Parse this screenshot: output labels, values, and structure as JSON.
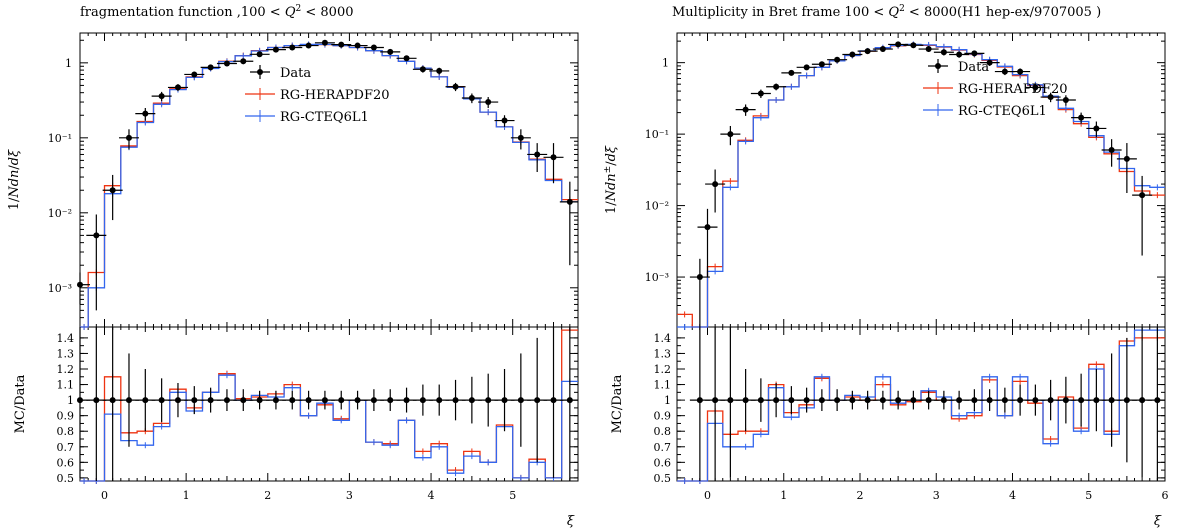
{
  "colors": {
    "data": "#000000",
    "herapdf": "#ee3311",
    "cteq": "#3366ee"
  },
  "chart_data": [
    {
      "type": "line",
      "title": "fragmentation function ,100 < Q² < 8000",
      "title_parts": {
        "pre": "fragmentation function ,100 < ",
        "q": "Q",
        "sup": "2",
        "post": " < 8000"
      },
      "ylabel": "1/Ndn/dξ",
      "ylabel_parts": {
        "a": "1/",
        "b": "Ndn",
        "c": "/",
        "d": "dξ"
      },
      "xlabel": "ξ",
      "ratio_ylabel": "MC/Data",
      "yscale": "log",
      "ylim": [
        0.0003,
        2.5
      ],
      "xlim": [
        -0.3,
        5.8
      ],
      "ratio_ylim": [
        0.48,
        1.47
      ],
      "legend_position": "top-center",
      "xticks": [
        "0",
        "1",
        "2",
        "3",
        "4",
        "5"
      ],
      "yticks": [
        "10⁻³",
        "10⁻²",
        "10⁻¹",
        "1"
      ],
      "ratio_yticks": [
        "0.5",
        "0.6",
        "0.7",
        "0.8",
        "0.9",
        "1",
        "1.1",
        "1.2",
        "1.3",
        "1.4"
      ],
      "series": [
        {
          "name": "Data",
          "kind": "points",
          "x": [
            -0.3,
            -0.1,
            0.1,
            0.3,
            0.5,
            0.7,
            0.9,
            1.1,
            1.3,
            1.5,
            1.7,
            1.9,
            2.1,
            2.3,
            2.5,
            2.7,
            2.9,
            3.1,
            3.3,
            3.5,
            3.7,
            3.9,
            4.1,
            4.3,
            4.5,
            4.7,
            4.9,
            5.1,
            5.3,
            5.5,
            5.7
          ],
          "y": [
            0.0011,
            0.005,
            0.02,
            0.1,
            0.21,
            0.36,
            0.47,
            0.7,
            0.87,
            0.98,
            1.05,
            1.3,
            1.5,
            1.6,
            1.7,
            1.85,
            1.75,
            1.7,
            1.6,
            1.4,
            1.15,
            0.82,
            0.78,
            0.48,
            0.34,
            0.3,
            0.17,
            0.1,
            0.06,
            0.055,
            0.014
          ],
          "yerr": [
            0.0005,
            0.0045,
            0.012,
            0.03,
            0.04,
            0.05,
            0.05,
            0.06,
            0.07,
            0.08,
            0.09,
            0.1,
            0.12,
            0.13,
            0.14,
            0.15,
            0.14,
            0.14,
            0.13,
            0.12,
            0.1,
            0.08,
            0.08,
            0.06,
            0.05,
            0.05,
            0.03,
            0.03,
            0.025,
            0.03,
            0.012
          ]
        },
        {
          "name": "RG-HERAPDF20",
          "kind": "step",
          "edges": [
            -0.4,
            -0.2,
            0.0,
            0.2,
            0.4,
            0.6,
            0.8,
            1.0,
            1.2,
            1.4,
            1.6,
            1.8,
            2.0,
            2.2,
            2.4,
            2.6,
            2.8,
            3.0,
            3.2,
            3.4,
            3.6,
            3.8,
            4.0,
            4.2,
            4.4,
            4.6,
            4.8,
            5.0,
            5.2,
            5.4,
            5.6,
            5.8
          ],
          "values": [
            0.0003,
            0.0016,
            0.023,
            0.078,
            0.165,
            0.29,
            0.45,
            0.65,
            0.85,
            1.05,
            1.25,
            1.45,
            1.6,
            1.7,
            1.75,
            1.75,
            1.7,
            1.6,
            1.45,
            1.25,
            1.05,
            0.85,
            0.65,
            0.48,
            0.33,
            0.22,
            0.14,
            0.088,
            0.052,
            0.028,
            0.015
          ]
        },
        {
          "name": "RG-CTEQ6L1",
          "kind": "step",
          "edges": [
            -0.4,
            -0.2,
            0.0,
            0.2,
            0.4,
            0.6,
            0.8,
            1.0,
            1.2,
            1.4,
            1.6,
            1.8,
            2.0,
            2.2,
            2.4,
            2.6,
            2.8,
            3.0,
            3.2,
            3.4,
            3.6,
            3.8,
            4.0,
            4.2,
            4.4,
            4.6,
            4.8,
            5.0,
            5.2,
            5.4,
            5.6,
            5.8
          ],
          "values": [
            0.0003,
            0.001,
            0.018,
            0.075,
            0.16,
            0.28,
            0.44,
            0.64,
            0.84,
            1.04,
            1.24,
            1.44,
            1.6,
            1.7,
            1.76,
            1.76,
            1.7,
            1.6,
            1.45,
            1.25,
            1.05,
            0.85,
            0.65,
            0.47,
            0.33,
            0.22,
            0.14,
            0.087,
            0.051,
            0.027,
            0.014
          ]
        }
      ],
      "ratio_series": [
        {
          "name": "Data",
          "kind": "points",
          "x": [
            -0.3,
            -0.1,
            0.1,
            0.3,
            0.5,
            0.7,
            0.9,
            1.1,
            1.3,
            1.5,
            1.7,
            1.9,
            2.1,
            2.3,
            2.5,
            2.7,
            2.9,
            3.1,
            3.3,
            3.5,
            3.7,
            3.9,
            4.1,
            4.3,
            4.5,
            4.7,
            4.9,
            5.1,
            5.3,
            5.5,
            5.7
          ],
          "y": [
            1,
            1,
            1,
            1,
            1,
            1,
            1,
            1,
            1,
            1,
            1,
            1,
            1,
            1,
            1,
            1,
            1,
            1,
            1,
            1,
            1,
            1,
            1,
            1,
            1,
            1,
            1,
            1,
            1,
            1,
            1
          ],
          "yerr": [
            0.5,
            0.8,
            0.6,
            0.3,
            0.2,
            0.14,
            0.11,
            0.09,
            0.08,
            0.07,
            0.07,
            0.06,
            0.06,
            0.06,
            0.06,
            0.06,
            0.06,
            0.06,
            0.07,
            0.07,
            0.08,
            0.1,
            0.1,
            0.13,
            0.15,
            0.17,
            0.2,
            0.3,
            0.4,
            0.5,
            0.8
          ]
        },
        {
          "name": "RG-HERAPDF20",
          "kind": "step",
          "edges": [
            -0.4,
            -0.2,
            0.0,
            0.2,
            0.4,
            0.6,
            0.8,
            1.0,
            1.2,
            1.4,
            1.6,
            1.8,
            2.0,
            2.2,
            2.4,
            2.6,
            2.8,
            3.0,
            3.2,
            3.4,
            3.6,
            3.8,
            4.0,
            4.2,
            4.4,
            4.6,
            4.8,
            5.0,
            5.2,
            5.4,
            5.6,
            5.8
          ],
          "values": [
            0.3,
            0.3,
            1.15,
            0.79,
            0.8,
            0.85,
            1.07,
            0.95,
            1.05,
            1.17,
            1.01,
            1.02,
            1.04,
            1.1,
            0.9,
            0.97,
            0.88,
            1.0,
            0.73,
            0.72,
            0.87,
            0.67,
            0.72,
            0.55,
            0.67,
            0.6,
            0.84,
            0.5,
            0.62,
            0.5,
            1.45
          ]
        },
        {
          "name": "RG-CTEQ6L1",
          "kind": "step",
          "edges": [
            -0.4,
            -0.2,
            0.0,
            0.2,
            0.4,
            0.6,
            0.8,
            1.0,
            1.2,
            1.4,
            1.6,
            1.8,
            2.0,
            2.2,
            2.4,
            2.6,
            2.8,
            3.0,
            3.2,
            3.4,
            3.6,
            3.8,
            4.0,
            4.2,
            4.4,
            4.6,
            4.8,
            5.0,
            5.2,
            5.4,
            5.6,
            5.8
          ],
          "values": [
            0.3,
            0.3,
            0.91,
            0.74,
            0.71,
            0.83,
            1.05,
            0.93,
            1.05,
            1.16,
            1.0,
            1.03,
            1.02,
            1.08,
            0.9,
            0.98,
            0.87,
            1.0,
            0.73,
            0.71,
            0.87,
            0.63,
            0.7,
            0.53,
            0.64,
            0.6,
            0.83,
            0.5,
            0.6,
            0.5,
            1.12
          ]
        }
      ]
    },
    {
      "type": "line",
      "title": "Multiplicity in Bret frame 100 < Q² < 8000(H1 hep-ex/9707005 )",
      "title_parts": {
        "pre": "Multiplicity in Bret frame 100 < ",
        "q": "Q",
        "sup": "2",
        "post": " < 8000(H1 hep-ex/9707005 )"
      },
      "ylabel": "1/Ndn±/dξ",
      "ylabel_parts": {
        "a": "1/",
        "b": "Ndn",
        "sup": "±",
        "c": "/",
        "d": "dξ"
      },
      "xlabel": "ξ",
      "ratio_ylabel": "MC/Data",
      "yscale": "log",
      "ylim": [
        0.0002,
        2.6
      ],
      "xlim": [
        -0.4,
        6.0
      ],
      "ratio_ylim": [
        0.48,
        1.47
      ],
      "legend_position": "top-right",
      "xticks": [
        "0",
        "1",
        "2",
        "3",
        "4",
        "5",
        "6"
      ],
      "yticks": [
        "10⁻³",
        "10⁻²",
        "10⁻¹",
        "1"
      ],
      "ratio_yticks": [
        "0.5",
        "0.6",
        "0.7",
        "0.8",
        "0.9",
        "1",
        "1.1",
        "1.2",
        "1.3",
        "1.4"
      ],
      "series": [
        {
          "name": "Data",
          "kind": "points",
          "x": [
            -0.1,
            0.0,
            0.1,
            0.3,
            0.5,
            0.7,
            0.9,
            1.1,
            1.3,
            1.5,
            1.7,
            1.9,
            2.1,
            2.3,
            2.5,
            2.7,
            2.9,
            3.1,
            3.3,
            3.5,
            3.7,
            3.9,
            4.1,
            4.3,
            4.5,
            4.7,
            4.9,
            5.1,
            5.3,
            5.5,
            5.7
          ],
          "y": [
            0.001,
            0.005,
            0.02,
            0.1,
            0.22,
            0.37,
            0.46,
            0.72,
            0.86,
            0.95,
            1.1,
            1.3,
            1.45,
            1.55,
            1.8,
            1.75,
            1.55,
            1.4,
            1.3,
            1.35,
            1.0,
            0.75,
            0.75,
            0.45,
            0.33,
            0.3,
            0.17,
            0.12,
            0.06,
            0.045,
            0.014
          ],
          "yerr": [
            0.0008,
            0.004,
            0.012,
            0.03,
            0.04,
            0.05,
            0.05,
            0.06,
            0.07,
            0.08,
            0.09,
            0.1,
            0.12,
            0.13,
            0.14,
            0.15,
            0.14,
            0.14,
            0.13,
            0.12,
            0.1,
            0.08,
            0.08,
            0.06,
            0.05,
            0.05,
            0.03,
            0.03,
            0.025,
            0.03,
            0.012
          ]
        },
        {
          "name": "RG-HERAPDF20",
          "kind": "step",
          "edges": [
            -0.4,
            -0.2,
            0.0,
            0.2,
            0.4,
            0.6,
            0.8,
            1.0,
            1.2,
            1.4,
            1.6,
            1.8,
            2.0,
            2.2,
            2.4,
            2.6,
            2.8,
            3.0,
            3.2,
            3.4,
            3.6,
            3.8,
            4.0,
            4.2,
            4.4,
            4.6,
            4.8,
            5.0,
            5.2,
            5.4,
            5.6,
            5.8,
            6.0
          ],
          "values": [
            0.0003,
            0.0002,
            0.0014,
            0.022,
            0.082,
            0.18,
            0.3,
            0.46,
            0.66,
            0.86,
            1.06,
            1.26,
            1.45,
            1.6,
            1.72,
            1.78,
            1.75,
            1.65,
            1.5,
            1.3,
            1.08,
            0.87,
            0.66,
            0.48,
            0.33,
            0.22,
            0.14,
            0.09,
            0.053,
            0.03,
            0.016,
            0.014
          ]
        },
        {
          "name": "RG-CTEQ6L1",
          "kind": "step",
          "edges": [
            -0.4,
            -0.2,
            0.0,
            0.2,
            0.4,
            0.6,
            0.8,
            1.0,
            1.2,
            1.4,
            1.6,
            1.8,
            2.0,
            2.2,
            2.4,
            2.6,
            2.8,
            3.0,
            3.2,
            3.4,
            3.6,
            3.8,
            4.0,
            4.2,
            4.4,
            4.6,
            4.8,
            5.0,
            5.2,
            5.4,
            5.6,
            5.8,
            6.0
          ],
          "values": [
            0.0002,
            0.0002,
            0.0012,
            0.018,
            0.079,
            0.17,
            0.3,
            0.46,
            0.66,
            0.86,
            1.06,
            1.26,
            1.46,
            1.62,
            1.74,
            1.8,
            1.77,
            1.67,
            1.52,
            1.32,
            1.1,
            0.89,
            0.68,
            0.49,
            0.34,
            0.23,
            0.15,
            0.095,
            0.056,
            0.033,
            0.019,
            0.018
          ]
        }
      ],
      "ratio_series": [
        {
          "name": "Data",
          "kind": "points",
          "x": [
            -0.1,
            0.1,
            0.3,
            0.5,
            0.7,
            0.9,
            1.1,
            1.3,
            1.5,
            1.7,
            1.9,
            2.1,
            2.3,
            2.5,
            2.7,
            2.9,
            3.1,
            3.3,
            3.5,
            3.7,
            3.9,
            4.1,
            4.3,
            4.5,
            4.7,
            4.9,
            5.1,
            5.3,
            5.5,
            5.7,
            5.9
          ],
          "y": [
            1,
            1,
            1,
            1,
            1,
            1,
            1,
            1,
            1,
            1,
            1,
            1,
            1,
            1,
            1,
            1,
            1,
            1,
            1,
            1,
            1,
            1,
            1,
            1,
            1,
            1,
            1,
            1,
            1,
            1,
            1
          ],
          "yerr": [
            0.9,
            0.9,
            0.5,
            0.2,
            0.14,
            0.11,
            0.09,
            0.08,
            0.07,
            0.07,
            0.06,
            0.06,
            0.06,
            0.06,
            0.06,
            0.06,
            0.06,
            0.06,
            0.07,
            0.07,
            0.08,
            0.1,
            0.1,
            0.13,
            0.15,
            0.17,
            0.2,
            0.3,
            0.4,
            0.5,
            0.6
          ]
        },
        {
          "name": "RG-HERAPDF20",
          "kind": "step",
          "edges": [
            -0.4,
            -0.2,
            0.0,
            0.2,
            0.4,
            0.6,
            0.8,
            1.0,
            1.2,
            1.4,
            1.6,
            1.8,
            2.0,
            2.2,
            2.4,
            2.6,
            2.8,
            3.0,
            3.2,
            3.4,
            3.6,
            3.8,
            4.0,
            4.2,
            4.4,
            4.6,
            4.8,
            5.0,
            5.2,
            5.4,
            5.6,
            5.8,
            6.0
          ],
          "values": [
            0.3,
            0.3,
            0.93,
            0.78,
            0.8,
            0.8,
            1.1,
            0.92,
            0.97,
            1.14,
            1.0,
            1.02,
            1.0,
            1.1,
            0.97,
            0.99,
            1.05,
            1.0,
            0.88,
            0.9,
            1.13,
            0.9,
            1.12,
            0.98,
            0.75,
            1.02,
            0.82,
            1.23,
            0.8,
            1.38,
            1.4,
            1.4
          ]
        },
        {
          "name": "RG-CTEQ6L1",
          "kind": "step",
          "edges": [
            -0.4,
            -0.2,
            0.0,
            0.2,
            0.4,
            0.6,
            0.8,
            1.0,
            1.2,
            1.4,
            1.6,
            1.8,
            2.0,
            2.2,
            2.4,
            2.6,
            2.8,
            3.0,
            3.2,
            3.4,
            3.6,
            3.8,
            4.0,
            4.2,
            4.4,
            4.6,
            4.8,
            5.0,
            5.2,
            5.4,
            5.6,
            5.8,
            6.0
          ],
          "values": [
            0.3,
            0.3,
            0.85,
            0.7,
            0.7,
            0.78,
            1.08,
            0.89,
            0.95,
            1.15,
            1.0,
            1.03,
            1.02,
            1.15,
            0.98,
            1.0,
            1.06,
            1.02,
            0.9,
            0.92,
            1.15,
            0.9,
            1.15,
            1.0,
            0.72,
            1.0,
            0.8,
            1.2,
            0.78,
            1.35,
            1.45,
            1.45
          ]
        }
      ]
    }
  ]
}
